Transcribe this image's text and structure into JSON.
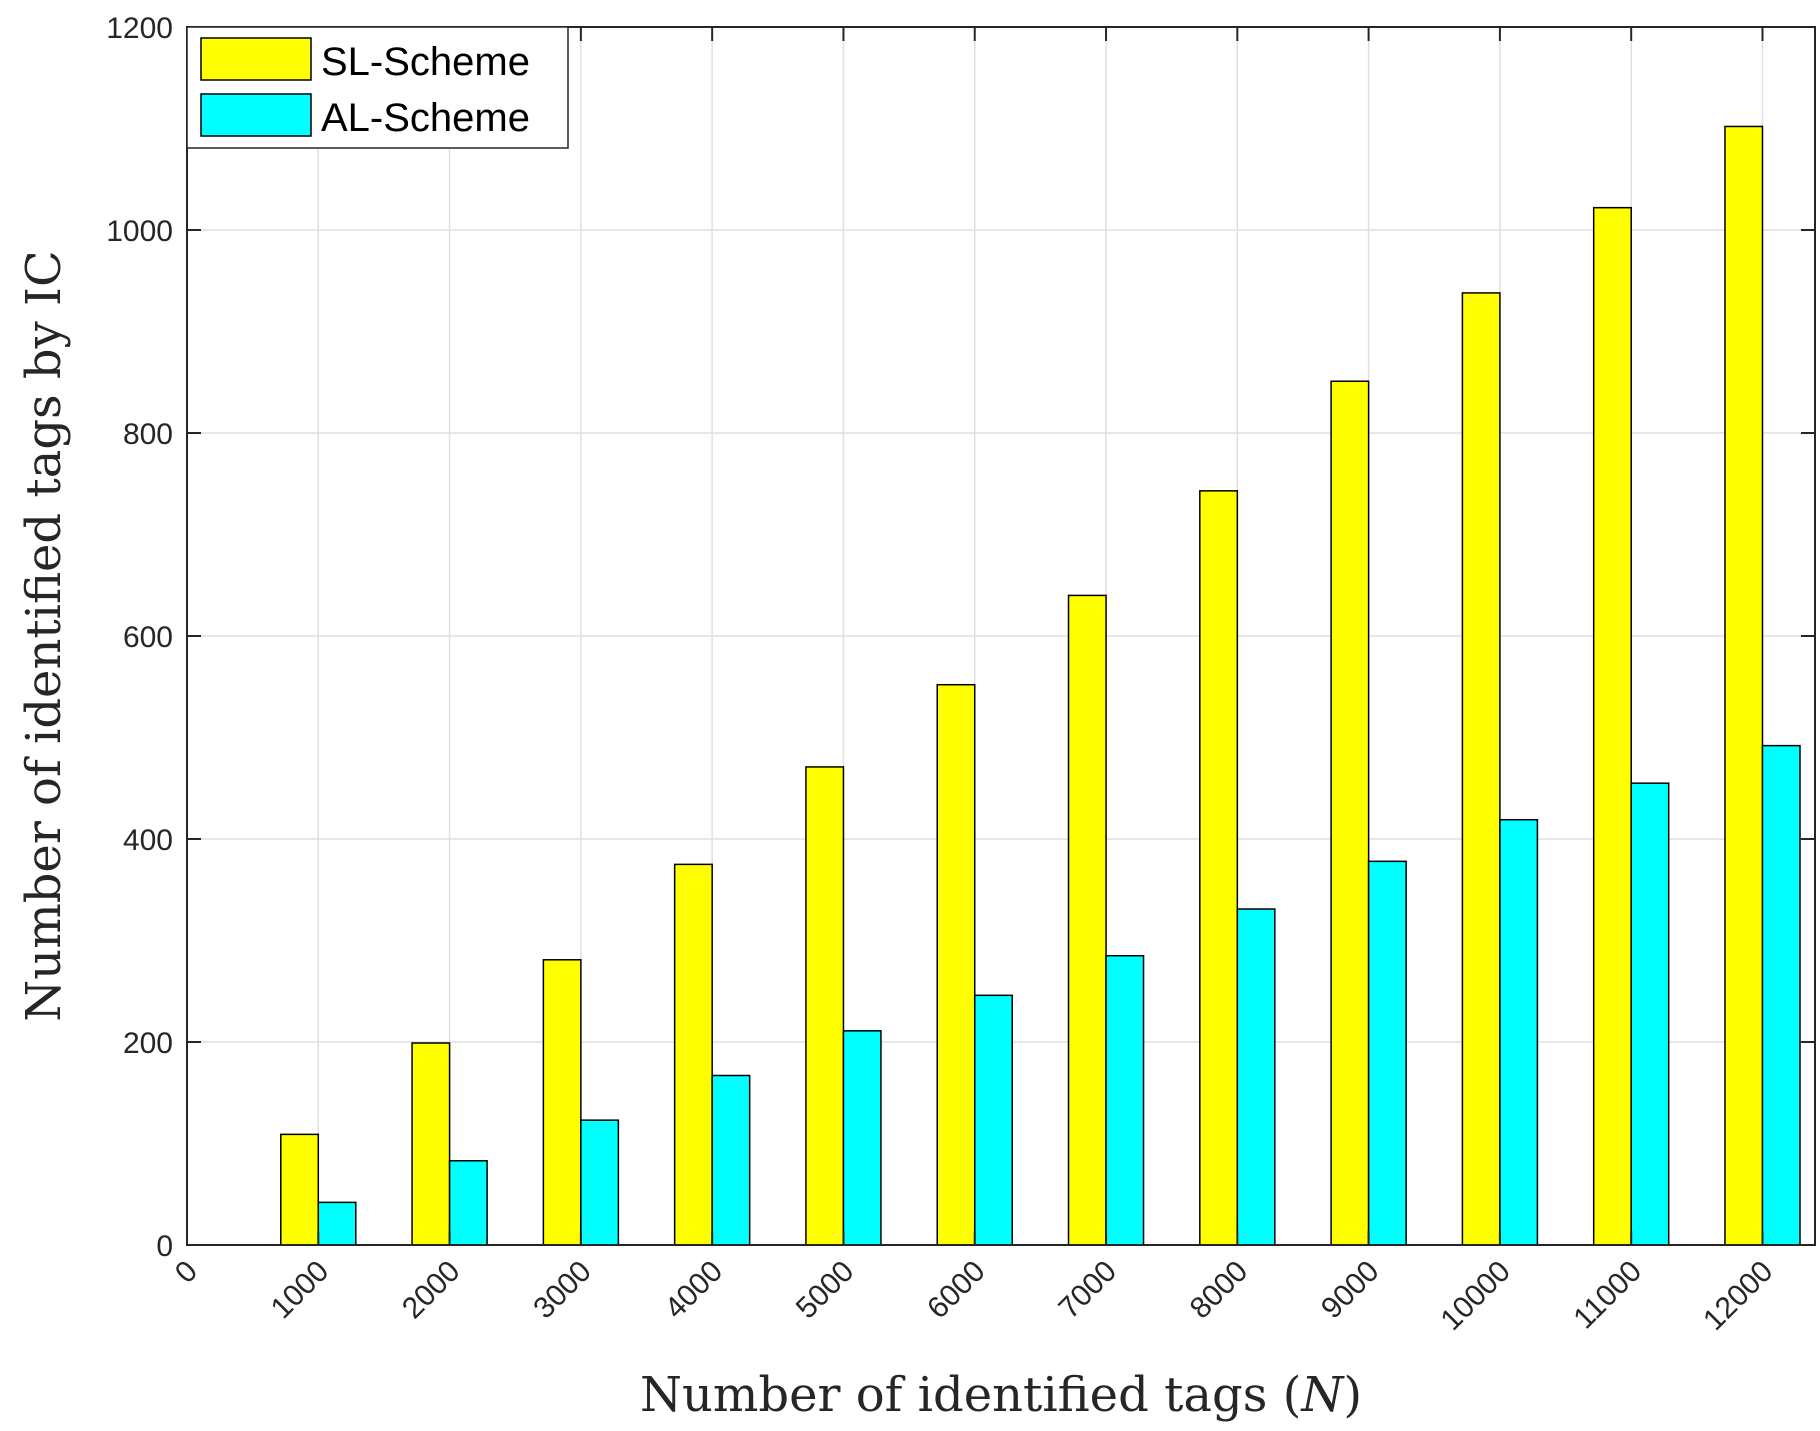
{
  "chart_data": {
    "type": "bar",
    "title": "",
    "xlabel_main": "Number of identified tags (",
    "xlabel_var": "N",
    "xlabel_end": ")",
    "ylabel": "Number of identified tags by IC",
    "x_ticks": [
      "0",
      "1000",
      "2000",
      "3000",
      "4000",
      "5000",
      "6000",
      "7000",
      "8000",
      "9000",
      "10000",
      "11000",
      "12000"
    ],
    "x_tick_values": [
      0,
      1000,
      2000,
      3000,
      4000,
      5000,
      6000,
      7000,
      8000,
      9000,
      10000,
      11000,
      12000
    ],
    "xlim": [
      0,
      12400
    ],
    "categories": [
      1000,
      2000,
      3000,
      4000,
      5000,
      6000,
      7000,
      8000,
      9000,
      10000,
      11000,
      12000
    ],
    "y_ticks": [
      "0",
      "200",
      "400",
      "600",
      "800",
      "1000",
      "1200"
    ],
    "y_tick_values": [
      0,
      200,
      400,
      600,
      800,
      1000,
      1200
    ],
    "ylim": [
      0,
      1200
    ],
    "grid": true,
    "legend_position": "top-left",
    "series": [
      {
        "name": "SL-Scheme",
        "color": "#ffff00",
        "values": [
          109,
          199,
          281,
          375,
          471,
          552,
          640,
          743,
          851,
          938,
          1022,
          1102
        ]
      },
      {
        "name": "AL-Scheme",
        "color": "#00ffff",
        "values": [
          42,
          83,
          123,
          167,
          211,
          246,
          285,
          331,
          378,
          419,
          455,
          492
        ]
      }
    ]
  }
}
